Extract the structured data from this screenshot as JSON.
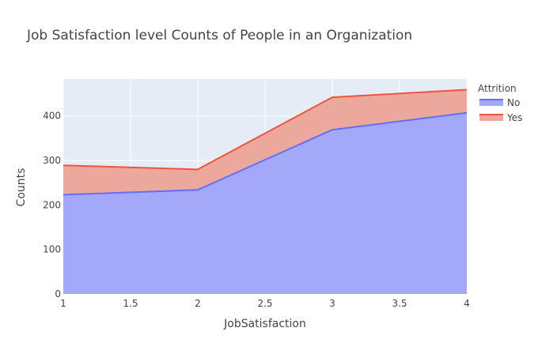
{
  "chart_data": {
    "type": "area",
    "title": "Job Satisfaction level Counts of People in an Organization",
    "xlabel": "JobSatisfaction",
    "ylabel": "Counts",
    "x": [
      1,
      2,
      3,
      4
    ],
    "xlim": [
      1,
      4
    ],
    "ylim": [
      0,
      483
    ],
    "x_ticks": [
      "1",
      "1.5",
      "2",
      "2.5",
      "3",
      "3.5",
      "4"
    ],
    "y_ticks": [
      "0",
      "100",
      "200",
      "300",
      "400"
    ],
    "stacked": true,
    "grid": true,
    "legend": {
      "title": "Attrition",
      "placement": "top-right"
    },
    "series": [
      {
        "name": "No",
        "values": [
          223,
          234,
          369,
          407
        ],
        "line_color": "#636efa",
        "fill_color": "#a3a9f8"
      },
      {
        "name": "Yes",
        "values": [
          66,
          46,
          73,
          52
        ],
        "line_color": "#ef553b",
        "fill_color": "#eca89c"
      }
    ]
  }
}
